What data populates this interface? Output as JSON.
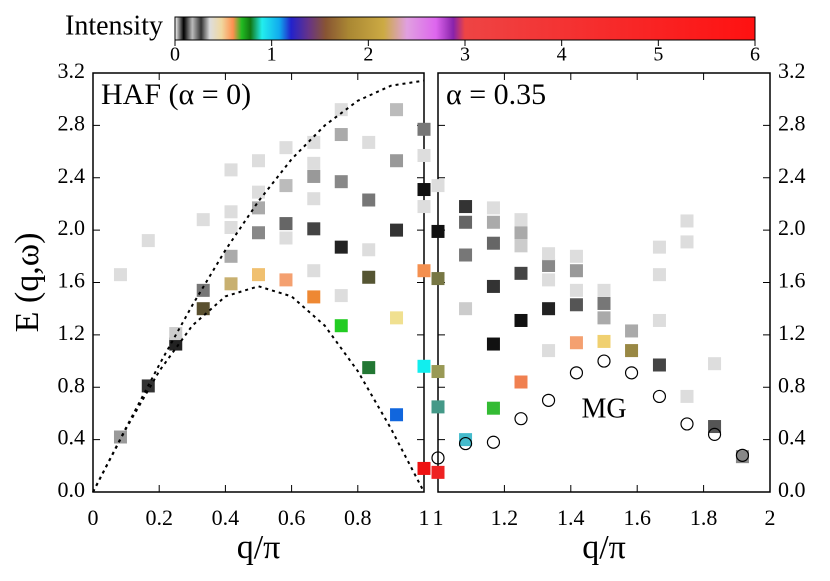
{
  "colorbar": {
    "title": "Intensity",
    "lim": [
      0,
      6
    ],
    "ticks": [
      0,
      1,
      2,
      3,
      4,
      5,
      6
    ]
  },
  "chart_data": [
    {
      "type": "scatter",
      "title": "HAF (α = 0)",
      "xlabel": "q/π",
      "ylabel": "E (q,ω)",
      "xlim": [
        0,
        1
      ],
      "ylim": [
        0,
        3.2
      ],
      "xticks": [
        0,
        0.2,
        0.4,
        0.6,
        0.8,
        1
      ],
      "yticks": [
        {
          "value": 0,
          "label": "0.0"
        },
        0.4,
        0.8,
        1.2,
        1.6,
        {
          "value": 2,
          "label": "2.0"
        },
        2.4,
        2.8,
        3.2
      ],
      "x": [
        0.083,
        0.083,
        0.167,
        0.167,
        0.25,
        0.25,
        0.333,
        0.333,
        0.333,
        0.417,
        0.417,
        0.417,
        0.417,
        0.417,
        0.5,
        0.5,
        0.5,
        0.5,
        0.5,
        0.583,
        0.583,
        0.583,
        0.583,
        0.583,
        0.667,
        0.667,
        0.667,
        0.667,
        0.667,
        0.667,
        0.667,
        0.75,
        0.75,
        0.75,
        0.75,
        0.75,
        0.75,
        0.833,
        0.833,
        0.833,
        0.833,
        0.833,
        0.917,
        0.917,
        0.917,
        0.917,
        0.917,
        1,
        1,
        1,
        1,
        1,
        1,
        1
      ],
      "values": [
        0.42,
        1.66,
        0.81,
        1.92,
        1.13,
        1.21,
        1.4,
        1.54,
        2.08,
        1.59,
        1.8,
        2.02,
        2.14,
        2.46,
        1.66,
        1.98,
        2.17,
        2.29,
        2.53,
        1.62,
        2.05,
        1.94,
        2.34,
        2.63,
        1.49,
        2.01,
        1.69,
        2.41,
        2.24,
        2.67,
        2.51,
        1.27,
        1.87,
        1.5,
        2.37,
        2.73,
        2.92,
        0.95,
        1.64,
        2.23,
        2.67,
        1.85,
        0.59,
        1.33,
        2.0,
        2.53,
        2.92,
        0.18,
        0.96,
        1.69,
        2.31,
        2.77,
        2.57,
        2.18
      ],
      "colors": [
        "#999",
        "#ddd",
        "#333",
        "#ddd",
        "#222",
        "#ccc",
        "#5a5030",
        "#777",
        "#ddd",
        "#c8b070",
        "#aaa",
        "#ddd",
        "#ddd",
        "#ddd",
        "#f0c070",
        "#888",
        "#aaa",
        "#ddd",
        "#ddd",
        "#f4a070",
        "#666",
        "#ddd",
        "#bbb",
        "#ddd",
        "#ee8833",
        "#444",
        "#ddd",
        "#999",
        "#ddd",
        "#ddd",
        "#ddd",
        "#22cc22",
        "#222",
        "#ddd",
        "#888",
        "#aaa",
        "#ddd",
        "#227733",
        "#555533",
        "#777",
        "#ddd",
        "#ddd",
        "#1166dd",
        "#f0e090",
        "#333",
        "#999",
        "#bbb",
        "#ee1111",
        "#11eeee",
        "#f49050",
        "#111",
        "#777",
        "#ddd",
        "#ddd"
      ],
      "curves": [
        {
          "x": [
            0,
            0.1,
            0.2,
            0.3,
            0.4,
            0.5,
            0.6,
            0.7,
            0.8,
            0.9,
            1
          ],
          "values": [
            0,
            0.491,
            0.971,
            1.426,
            1.847,
            2.221,
            2.542,
            2.799,
            2.988,
            3.103,
            3.142
          ]
        },
        {
          "x": [
            0,
            0.1,
            0.2,
            0.3,
            0.4,
            0.5,
            0.6,
            0.7,
            0.8,
            0.9,
            1
          ],
          "values": [
            0,
            0.485,
            0.923,
            1.271,
            1.494,
            1.571,
            1.494,
            1.271,
            0.923,
            0.485,
            0
          ]
        }
      ]
    },
    {
      "type": "scatter",
      "title": "α = 0.35",
      "xlabel": "q/π",
      "xlim": [
        1,
        2
      ],
      "ylim": [
        0,
        3.2
      ],
      "xticks": [
        1,
        1.2,
        1.4,
        1.6,
        1.8,
        2
      ],
      "yticks": [
        {
          "value": 0,
          "label": "0.0"
        },
        0.4,
        0.8,
        1.2,
        1.6,
        {
          "value": 2,
          "label": "2.0"
        },
        2.4,
        2.8,
        3.2
      ],
      "x": [
        1,
        1,
        1,
        1,
        1,
        1,
        1.083,
        1.083,
        1.083,
        1.083,
        1.083,
        1.167,
        1.167,
        1.167,
        1.167,
        1.167,
        1.167,
        1.25,
        1.25,
        1.25,
        1.25,
        1.25,
        1.25,
        1.333,
        1.333,
        1.333,
        1.333,
        1.333,
        1.417,
        1.417,
        1.417,
        1.417,
        1.417,
        1.5,
        1.5,
        1.5,
        1.5,
        1.583,
        1.583,
        1.667,
        1.667,
        1.667,
        1.667,
        1.75,
        1.75,
        1.75,
        1.833,
        1.833,
        1.917
      ],
      "values": [
        0.15,
        0.65,
        0.92,
        1.63,
        1.99,
        2.34,
        0.4,
        1.4,
        1.81,
        2.06,
        2.18,
        0.64,
        1.13,
        1.57,
        1.9,
        2.06,
        2.17,
        0.84,
        1.31,
        1.67,
        1.88,
        1.98,
        2.08,
        1.08,
        1.4,
        1.62,
        1.73,
        1.82,
        1.14,
        1.43,
        1.54,
        1.69,
        1.8,
        1.15,
        1.33,
        1.44,
        1.54,
        1.08,
        1.23,
        0.97,
        1.31,
        1.66,
        1.87,
        0.73,
        1.91,
        2.07,
        0.5,
        0.98,
        0.27
      ],
      "colors": [
        "#ee2222",
        "#449988",
        "#999955",
        "#777744",
        "#111",
        "#ddd",
        "#44bbcc",
        "#ccc",
        "#777",
        "#666",
        "#333",
        "#33bb33",
        "#111",
        "#333",
        "#666",
        "#aaa",
        "#ddd",
        "#f08050",
        "#111",
        "#444",
        "#ccc",
        "#aaa",
        "#ddd",
        "#ddd",
        "#222",
        "#ddd",
        "#888",
        "#ddd",
        "#f4a070",
        "#555",
        "#ddd",
        "#999",
        "#ddd",
        "#f0d070",
        "#aaa",
        "#777",
        "#ddd",
        "#998844",
        "#aaa",
        "#444",
        "#ddd",
        "#ddd",
        "#ddd",
        "#ddd",
        "#ddd",
        "#ddd",
        "#555",
        "#ddd",
        "#888"
      ],
      "series": [
        {
          "name": "MG",
          "x": [
            1,
            1.083,
            1.167,
            1.25,
            1.333,
            1.417,
            1.5,
            1.583,
            1.667,
            1.75,
            1.833,
            1.917
          ],
          "values": [
            0.26,
            0.37,
            0.38,
            0.56,
            0.7,
            0.91,
            1.0,
            0.91,
            0.73,
            0.52,
            0.44,
            0.28
          ]
        }
      ]
    }
  ]
}
